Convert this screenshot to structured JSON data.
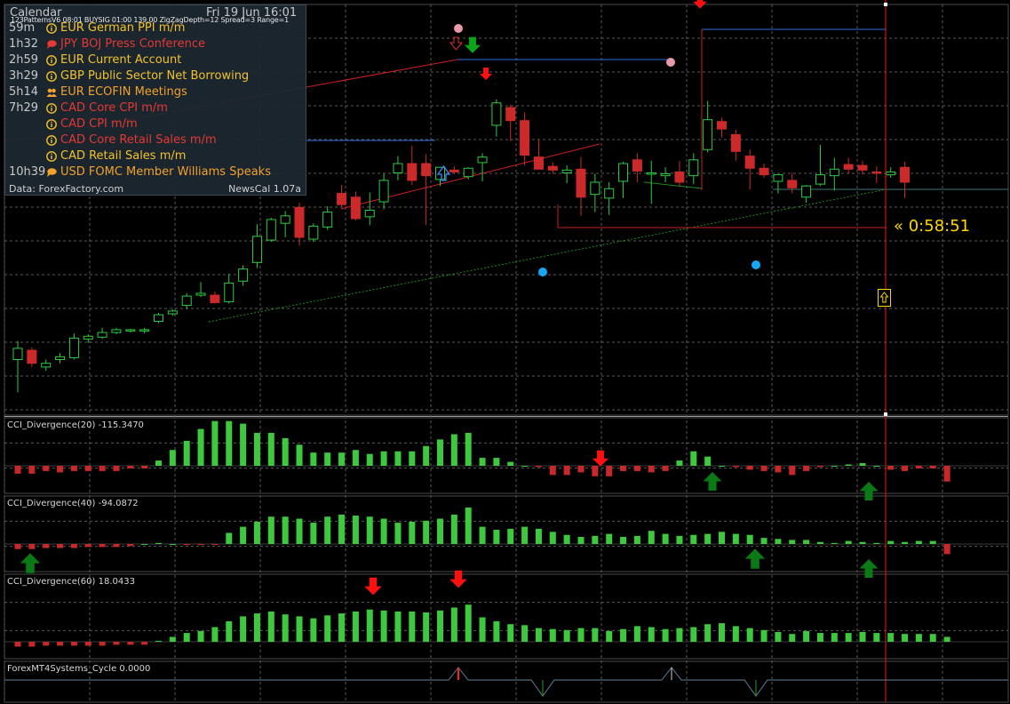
{
  "colors": {
    "background": "#000000",
    "grid": "#5a5a5a",
    "bull": "#2ecc40",
    "bear": "#cc2a2a",
    "hist_pos": "#3ec83e",
    "hist_neg": "#c8282a",
    "arrow_green": "#0b7a14",
    "arrow_red": "#ff1010",
    "current_time_line": "#d01010",
    "countdown": "#ffd700",
    "blue_line": "#2f6fd6",
    "dot_blue": "#17a8f5",
    "dot_pink": "#e89aa8"
  },
  "calendar": {
    "title": "Calendar",
    "date": "Fri 19 Jun 16:01",
    "indicator_line": "123PatternsV6 08:01 BUYSIG 01:00 139.00 ZigZagDepth=12 Spread=3 Range=1",
    "events": [
      {
        "time": "59m",
        "icon": "info",
        "currency": "EUR",
        "title": "German PPI m/m",
        "color": "#f2c12e"
      },
      {
        "time": "1h32",
        "icon": "speech",
        "currency": "JPY",
        "title": "BOJ Press Conference",
        "color": "#e53935"
      },
      {
        "time": "2h59",
        "icon": "info",
        "currency": "EUR",
        "title": "Current Account",
        "color": "#f2c12e"
      },
      {
        "time": "3h29",
        "icon": "info",
        "currency": "GBP",
        "title": "Public Sector Net Borrowing",
        "color": "#f2c12e"
      },
      {
        "time": "5h14",
        "icon": "meeting",
        "currency": "EUR",
        "title": "ECOFIN Meetings",
        "color": "#f2a12e"
      },
      {
        "time": "7h29",
        "icon": "info",
        "currency": "CAD",
        "title": "Core CPI m/m",
        "color": "#e53935"
      },
      {
        "time": "",
        "icon": "info",
        "currency": "CAD",
        "title": "CPI m/m",
        "color": "#e53935"
      },
      {
        "time": "",
        "icon": "info",
        "currency": "CAD",
        "title": "Core Retail Sales m/m",
        "color": "#e53935"
      },
      {
        "time": "",
        "icon": "info",
        "currency": "CAD",
        "title": "Retail Sales m/m",
        "color": "#f2c12e"
      },
      {
        "time": "10h39",
        "icon": "speech",
        "currency": "USD",
        "title": "FOMC Member Williams Speaks",
        "color": "#f2a12e"
      }
    ],
    "footer": "Data: ForexFactory.com",
    "version": "NewsCal 1.07a"
  },
  "countdown": "« 0:58:51",
  "candles": [
    {
      "o": 1.0,
      "h": 3.0,
      "l": -2.5,
      "c": 2.2
    },
    {
      "o": 2.0,
      "h": 2.3,
      "l": 0.2,
      "c": 0.6
    },
    {
      "o": 0.2,
      "h": 1.0,
      "l": -0.2,
      "c": 0.6
    },
    {
      "o": 1.0,
      "h": 1.7,
      "l": 0.6,
      "c": 1.3
    },
    {
      "o": 1.2,
      "h": 3.8,
      "l": 1.0,
      "c": 3.3
    },
    {
      "o": 3.2,
      "h": 3.7,
      "l": 2.8,
      "c": 3.5
    },
    {
      "o": 3.4,
      "h": 4.4,
      "l": 3.2,
      "c": 3.9
    },
    {
      "o": 3.9,
      "h": 4.4,
      "l": 3.7,
      "c": 4.2
    },
    {
      "o": 4.1,
      "h": 4.3,
      "l": 3.9,
      "c": 4.2
    },
    {
      "o": 4.1,
      "h": 4.4,
      "l": 3.8,
      "c": 4.2
    },
    {
      "o": 5.1,
      "h": 6.0,
      "l": 4.9,
      "c": 5.8
    },
    {
      "o": 5.9,
      "h": 6.4,
      "l": 5.7,
      "c": 6.2
    },
    {
      "o": 6.8,
      "h": 8.1,
      "l": 6.4,
      "c": 7.8
    },
    {
      "o": 7.9,
      "h": 9.3,
      "l": 7.7,
      "c": 8.1
    },
    {
      "o": 7.9,
      "h": 8.3,
      "l": 7.0,
      "c": 7.1
    },
    {
      "o": 7.2,
      "h": 10.2,
      "l": 7.0,
      "c": 9.2
    },
    {
      "o": 9.4,
      "h": 11.1,
      "l": 8.9,
      "c": 10.7
    },
    {
      "o": 11.4,
      "h": 15.5,
      "l": 10.8,
      "c": 14.2
    },
    {
      "o": 13.8,
      "h": 16.2,
      "l": 13.6,
      "c": 16.0
    },
    {
      "o": 15.6,
      "h": 16.9,
      "l": 14.1,
      "c": 16.4
    },
    {
      "o": 17.3,
      "h": 17.8,
      "l": 13.2,
      "c": 14.1
    },
    {
      "o": 13.9,
      "h": 15.6,
      "l": 13.6,
      "c": 15.3
    },
    {
      "o": 15.2,
      "h": 17.4,
      "l": 14.9,
      "c": 16.8
    },
    {
      "o": 18.8,
      "h": 19.7,
      "l": 17.3,
      "c": 17.6
    },
    {
      "o": 18.4,
      "h": 19.0,
      "l": 15.9,
      "c": 16.1
    },
    {
      "o": 16.3,
      "h": 18.9,
      "l": 15.4,
      "c": 17.0
    },
    {
      "o": 17.9,
      "h": 20.9,
      "l": 17.1,
      "c": 20.2
    },
    {
      "o": 21.0,
      "h": 22.8,
      "l": 20.2,
      "c": 22.0
    },
    {
      "o": 22.0,
      "h": 23.9,
      "l": 19.7,
      "c": 20.2
    },
    {
      "o": 22.0,
      "h": 23.0,
      "l": 15.4,
      "c": 20.7
    },
    {
      "o": 20.3,
      "h": 21.6,
      "l": 19.6,
      "c": 21.6
    },
    {
      "o": 21.3,
      "h": 21.7,
      "l": 20.9,
      "c": 21.1
    },
    {
      "o": 20.6,
      "h": 21.6,
      "l": 20.3,
      "c": 21.5
    },
    {
      "o": 22.1,
      "h": 23.1,
      "l": 20.1,
      "c": 22.7
    },
    {
      "o": 26.1,
      "h": 28.9,
      "l": 24.9,
      "c": 28.5
    },
    {
      "o": 28.0,
      "h": 28.3,
      "l": 24.4,
      "c": 26.6
    },
    {
      "o": 26.6,
      "h": 27.5,
      "l": 21.8,
      "c": 22.9
    },
    {
      "o": 22.7,
      "h": 24.6,
      "l": 21.4,
      "c": 21.4
    },
    {
      "o": 21.7,
      "h": 22.1,
      "l": 20.9,
      "c": 21.3
    },
    {
      "o": 21.0,
      "h": 21.8,
      "l": 19.9,
      "c": 21.3
    },
    {
      "o": 21.4,
      "h": 22.7,
      "l": 16.4,
      "c": 18.4
    },
    {
      "o": 18.7,
      "h": 20.9,
      "l": 16.8,
      "c": 20.0
    },
    {
      "o": 18.3,
      "h": 20.0,
      "l": 16.5,
      "c": 19.3
    },
    {
      "o": 20.1,
      "h": 22.2,
      "l": 18.3,
      "c": 22.0
    },
    {
      "o": 22.4,
      "h": 23.1,
      "l": 20.0,
      "c": 21.2
    },
    {
      "o": 20.9,
      "h": 22.3,
      "l": 17.7,
      "c": 21.0
    },
    {
      "o": 20.7,
      "h": 21.6,
      "l": 20.0,
      "c": 20.9
    },
    {
      "o": 21.1,
      "h": 22.3,
      "l": 19.5,
      "c": 20.0
    },
    {
      "o": 20.7,
      "h": 23.1,
      "l": 19.8,
      "c": 22.4
    },
    {
      "o": 23.5,
      "h": 28.7,
      "l": 23.2,
      "c": 26.7
    },
    {
      "o": 26.5,
      "h": 26.9,
      "l": 24.8,
      "c": 25.7
    },
    {
      "o": 25.1,
      "h": 25.6,
      "l": 22.3,
      "c": 23.3
    },
    {
      "o": 22.8,
      "h": 23.5,
      "l": 19.2,
      "c": 21.5
    },
    {
      "o": 21.5,
      "h": 22.0,
      "l": 20.5,
      "c": 20.8
    },
    {
      "o": 20.1,
      "h": 20.8,
      "l": 18.8,
      "c": 20.8
    },
    {
      "o": 20.2,
      "h": 21.0,
      "l": 18.8,
      "c": 19.4
    },
    {
      "o": 18.4,
      "h": 19.7,
      "l": 17.8,
      "c": 19.6
    },
    {
      "o": 19.8,
      "h": 24.0,
      "l": 19.6,
      "c": 20.8
    },
    {
      "o": 20.7,
      "h": 22.6,
      "l": 19.1,
      "c": 21.4
    },
    {
      "o": 21.9,
      "h": 22.6,
      "l": 20.9,
      "c": 21.4
    },
    {
      "o": 21.8,
      "h": 22.3,
      "l": 20.8,
      "c": 21.3
    },
    {
      "o": 21.1,
      "h": 21.7,
      "l": 19.9,
      "c": 21.0
    },
    {
      "o": 20.8,
      "h": 21.6,
      "l": 20.5,
      "c": 21.1
    },
    {
      "o": 21.6,
      "h": 22.2,
      "l": 18.3,
      "c": 20.0
    }
  ],
  "cci_panels": [
    {
      "label": "CCI_Divergence(20) -115.3470",
      "values": [
        -6,
        -6,
        -4,
        -5,
        -4,
        -4,
        -4,
        -4,
        -2,
        -2,
        4,
        12,
        19,
        28,
        34,
        34,
        32,
        25,
        25,
        21,
        16,
        10,
        10,
        10,
        12,
        9,
        11,
        11,
        11,
        15,
        20,
        24,
        25,
        6,
        6,
        3,
        0,
        -1,
        -7,
        -7,
        -5,
        -8,
        -8,
        -4,
        -4,
        -5,
        -4,
        4,
        11,
        7,
        0,
        -1,
        -3,
        -4,
        -5,
        -7,
        -4,
        -1,
        0,
        1,
        2,
        0,
        -3,
        -4,
        -2,
        -2,
        -12
      ]
    },
    {
      "label": "CCI_Divergence(40) -94.0872",
      "values": [
        -5,
        -5,
        -4,
        -4,
        -4,
        -3,
        -3,
        -3,
        -2,
        0,
        1,
        0,
        -1,
        -1,
        -1,
        11,
        17,
        22,
        27,
        27,
        25,
        21,
        27,
        29,
        28,
        27,
        25,
        21,
        22,
        23,
        25,
        29,
        36,
        17,
        14,
        15,
        17,
        15,
        12,
        9,
        7,
        8,
        10,
        7,
        8,
        13,
        10,
        8,
        9,
        10,
        12,
        10,
        9,
        6,
        5,
        4,
        4,
        2,
        1,
        3,
        2,
        1,
        3,
        2,
        3,
        3,
        -10
      ]
    },
    {
      "label": "CCI_Divergence(60) 18.0433",
      "values": [
        -5,
        -5,
        -4,
        -4,
        -4,
        -4,
        -4,
        -3,
        -3,
        -3,
        1,
        5,
        9,
        11,
        15,
        21,
        26,
        29,
        31,
        28,
        26,
        24,
        27,
        29,
        31,
        33,
        32,
        31,
        31,
        30,
        32,
        35,
        38,
        25,
        21,
        18,
        17,
        14,
        13,
        12,
        14,
        14,
        11,
        13,
        16,
        15,
        13,
        14,
        15,
        18,
        19,
        16,
        14,
        12,
        10,
        8,
        11,
        9,
        9,
        9,
        10,
        9,
        9,
        8,
        8,
        8,
        5
      ]
    }
  ],
  "cycle_label": "ForexMT4Systems_Cycle 0.0000"
}
